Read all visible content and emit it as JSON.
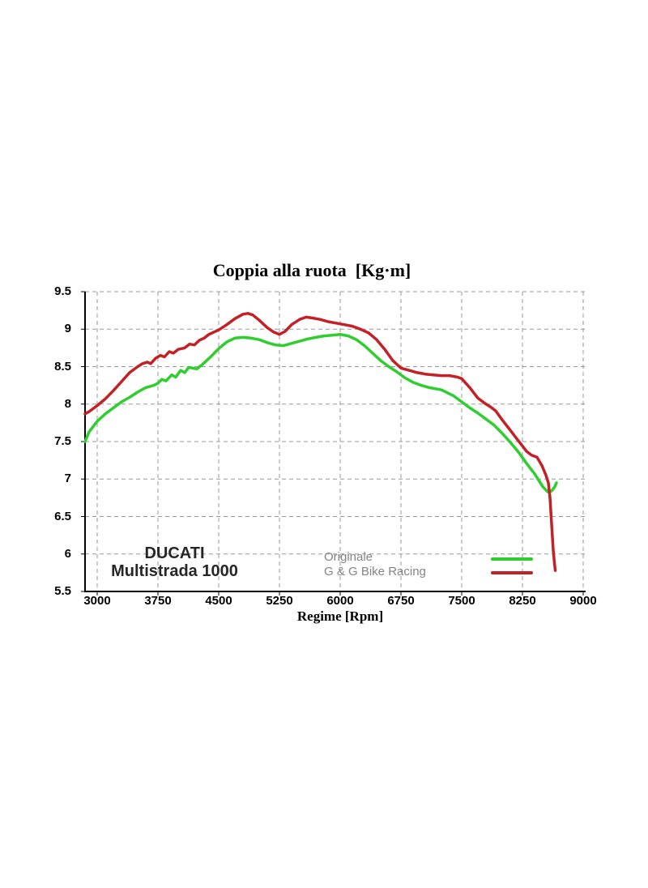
{
  "chart": {
    "title": "Coppia alla ruota  [Kg·m]",
    "xlabel": "Regime [Rpm]",
    "branding": {
      "line1": "DUCATI",
      "line2": "Multistrada 1000"
    }
  },
  "chart_data": {
    "type": "line",
    "title": "Coppia alla ruota  [Kg·m]",
    "xlabel": "Regime [Rpm]",
    "ylabel": "",
    "xlim": [
      2850,
      9000
    ],
    "ylim": [
      5.5,
      9.5
    ],
    "x_ticks": [
      "3000",
      "3750",
      "4500",
      "5250",
      "6000",
      "6750",
      "7500",
      "8250",
      "9000"
    ],
    "y_ticks": [
      "9.5",
      "9",
      "8.5",
      "8",
      "7.5",
      "7",
      "6.5",
      "6",
      "5.5"
    ],
    "grid": "dashed-gray",
    "grid_color": "#999999",
    "axis_color": "#000000",
    "legend_position": "inside-bottom-center",
    "legend_text_color": "#848484",
    "series": [
      {
        "name": "Originale",
        "color": "#2fce2f",
        "points": [
          [
            2850,
            7.5
          ],
          [
            2900,
            7.63
          ],
          [
            3000,
            7.77
          ],
          [
            3100,
            7.87
          ],
          [
            3200,
            7.95
          ],
          [
            3300,
            8.03
          ],
          [
            3400,
            8.09
          ],
          [
            3500,
            8.16
          ],
          [
            3600,
            8.22
          ],
          [
            3700,
            8.25
          ],
          [
            3750,
            8.28
          ],
          [
            3800,
            8.33
          ],
          [
            3850,
            8.31
          ],
          [
            3920,
            8.39
          ],
          [
            3970,
            8.36
          ],
          [
            4030,
            8.45
          ],
          [
            4080,
            8.42
          ],
          [
            4130,
            8.49
          ],
          [
            4230,
            8.47
          ],
          [
            4300,
            8.53
          ],
          [
            4400,
            8.63
          ],
          [
            4500,
            8.74
          ],
          [
            4600,
            8.83
          ],
          [
            4700,
            8.88
          ],
          [
            4800,
            8.89
          ],
          [
            4900,
            8.88
          ],
          [
            5000,
            8.86
          ],
          [
            5100,
            8.82
          ],
          [
            5200,
            8.79
          ],
          [
            5300,
            8.78
          ],
          [
            5400,
            8.81
          ],
          [
            5500,
            8.84
          ],
          [
            5600,
            8.87
          ],
          [
            5700,
            8.89
          ],
          [
            5800,
            8.91
          ],
          [
            5900,
            8.92
          ],
          [
            6000,
            8.93
          ],
          [
            6100,
            8.91
          ],
          [
            6200,
            8.86
          ],
          [
            6300,
            8.78
          ],
          [
            6400,
            8.68
          ],
          [
            6500,
            8.58
          ],
          [
            6600,
            8.5
          ],
          [
            6700,
            8.43
          ],
          [
            6800,
            8.35
          ],
          [
            6900,
            8.29
          ],
          [
            7000,
            8.25
          ],
          [
            7100,
            8.22
          ],
          [
            7250,
            8.19
          ],
          [
            7400,
            8.11
          ],
          [
            7500,
            8.03
          ],
          [
            7600,
            7.95
          ],
          [
            7700,
            7.88
          ],
          [
            7800,
            7.8
          ],
          [
            7900,
            7.72
          ],
          [
            8000,
            7.61
          ],
          [
            8100,
            7.49
          ],
          [
            8200,
            7.36
          ],
          [
            8300,
            7.21
          ],
          [
            8400,
            7.07
          ],
          [
            8500,
            6.9
          ],
          [
            8560,
            6.83
          ],
          [
            8610,
            6.84
          ],
          [
            8650,
            6.9
          ],
          [
            8670,
            6.95
          ]
        ]
      },
      {
        "name": "G & G Bike Racing",
        "color": "#c42127",
        "points": [
          [
            2850,
            7.87
          ],
          [
            2900,
            7.9
          ],
          [
            3000,
            7.98
          ],
          [
            3100,
            8.07
          ],
          [
            3200,
            8.18
          ],
          [
            3300,
            8.3
          ],
          [
            3400,
            8.42
          ],
          [
            3500,
            8.5
          ],
          [
            3560,
            8.54
          ],
          [
            3620,
            8.56
          ],
          [
            3660,
            8.54
          ],
          [
            3720,
            8.61
          ],
          [
            3780,
            8.65
          ],
          [
            3830,
            8.63
          ],
          [
            3890,
            8.7
          ],
          [
            3940,
            8.68
          ],
          [
            4000,
            8.73
          ],
          [
            4080,
            8.75
          ],
          [
            4140,
            8.8
          ],
          [
            4200,
            8.79
          ],
          [
            4260,
            8.85
          ],
          [
            4320,
            8.88
          ],
          [
            4380,
            8.93
          ],
          [
            4440,
            8.96
          ],
          [
            4500,
            8.99
          ],
          [
            4600,
            9.06
          ],
          [
            4700,
            9.14
          ],
          [
            4800,
            9.2
          ],
          [
            4860,
            9.21
          ],
          [
            4920,
            9.19
          ],
          [
            5000,
            9.12
          ],
          [
            5100,
            9.02
          ],
          [
            5180,
            8.96
          ],
          [
            5250,
            8.93
          ],
          [
            5320,
            8.97
          ],
          [
            5400,
            9.06
          ],
          [
            5500,
            9.13
          ],
          [
            5580,
            9.16
          ],
          [
            5650,
            9.15
          ],
          [
            5750,
            9.13
          ],
          [
            5850,
            9.1
          ],
          [
            5950,
            9.08
          ],
          [
            6050,
            9.06
          ],
          [
            6150,
            9.04
          ],
          [
            6250,
            9.0
          ],
          [
            6350,
            8.95
          ],
          [
            6450,
            8.86
          ],
          [
            6550,
            8.73
          ],
          [
            6650,
            8.58
          ],
          [
            6750,
            8.48
          ],
          [
            6850,
            8.45
          ],
          [
            6950,
            8.42
          ],
          [
            7050,
            8.4
          ],
          [
            7150,
            8.39
          ],
          [
            7250,
            8.38
          ],
          [
            7350,
            8.38
          ],
          [
            7450,
            8.36
          ],
          [
            7500,
            8.34
          ],
          [
            7600,
            8.22
          ],
          [
            7700,
            8.08
          ],
          [
            7800,
            8.0
          ],
          [
            7860,
            7.96
          ],
          [
            7920,
            7.91
          ],
          [
            8000,
            7.79
          ],
          [
            8100,
            7.65
          ],
          [
            8200,
            7.51
          ],
          [
            8250,
            7.44
          ],
          [
            8300,
            7.37
          ],
          [
            8360,
            7.32
          ],
          [
            8430,
            7.29
          ],
          [
            8490,
            7.18
          ],
          [
            8540,
            7.05
          ],
          [
            8570,
            6.95
          ],
          [
            8590,
            6.75
          ],
          [
            8610,
            6.4
          ],
          [
            8630,
            6.05
          ],
          [
            8645,
            5.88
          ],
          [
            8655,
            5.78
          ]
        ]
      }
    ]
  }
}
